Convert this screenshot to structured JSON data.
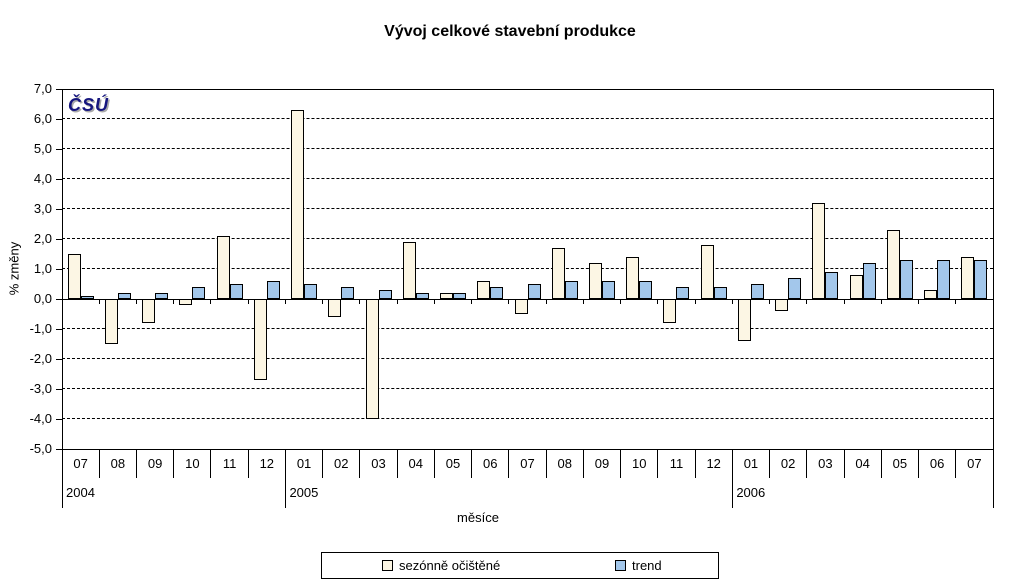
{
  "title": "Vývoj celkové stavební produkce",
  "logo": {
    "text": "ČSÚ",
    "color": "#15157e"
  },
  "axes": {
    "y_label": "% změny",
    "x_label": "měsíce",
    "y_ticks": [
      {
        "v": 7,
        "label": "7,0"
      },
      {
        "v": 6,
        "label": "6,0"
      },
      {
        "v": 5,
        "label": "5,0"
      },
      {
        "v": 4,
        "label": "4,0"
      },
      {
        "v": 3,
        "label": "3,0"
      },
      {
        "v": 2,
        "label": "2,0"
      },
      {
        "v": 1,
        "label": "1,0"
      },
      {
        "v": 0,
        "label": "0,0"
      },
      {
        "v": -1,
        "label": "-1,0"
      },
      {
        "v": -2,
        "label": "-2,0"
      },
      {
        "v": -3,
        "label": "-3,0"
      },
      {
        "v": -4,
        "label": "-4,0"
      },
      {
        "v": -5,
        "label": "-5,0"
      }
    ]
  },
  "chart_data": {
    "type": "bar",
    "title": "Vývoj celkové stavební produkce",
    "xlabel": "měsíce",
    "ylabel": "% změny",
    "ylim": [
      -5,
      7
    ],
    "grid": true,
    "legend_position": "bottom",
    "x_groups": [
      {
        "year": "2004",
        "months": [
          "07",
          "08",
          "09",
          "10",
          "11",
          "12"
        ]
      },
      {
        "year": "2005",
        "months": [
          "01",
          "02",
          "03",
          "04",
          "05",
          "06",
          "07",
          "08",
          "09",
          "10",
          "11",
          "12"
        ]
      },
      {
        "year": "2006",
        "months": [
          "01",
          "02",
          "03",
          "04",
          "05",
          "06",
          "07"
        ]
      }
    ],
    "categories": [
      "2004-07",
      "2004-08",
      "2004-09",
      "2004-10",
      "2004-11",
      "2004-12",
      "2005-01",
      "2005-02",
      "2005-03",
      "2005-04",
      "2005-05",
      "2005-06",
      "2005-07",
      "2005-08",
      "2005-09",
      "2005-10",
      "2005-11",
      "2005-12",
      "2006-01",
      "2006-02",
      "2006-03",
      "2006-04",
      "2006-05",
      "2006-06",
      "2006-07"
    ],
    "series": [
      {
        "name": "sezónně očištěné",
        "color": "#fcf6e4",
        "values": [
          1.5,
          -1.5,
          -0.8,
          -0.2,
          2.1,
          -2.7,
          6.3,
          -0.6,
          -4.0,
          1.9,
          0.2,
          0.6,
          -0.5,
          1.7,
          1.2,
          1.4,
          -0.8,
          1.8,
          -1.4,
          -0.4,
          3.2,
          0.8,
          2.3,
          0.3,
          1.4
        ]
      },
      {
        "name": "trend",
        "color": "#a3c7eb",
        "values": [
          0.1,
          0.2,
          0.2,
          0.4,
          0.5,
          0.6,
          0.5,
          0.4,
          0.3,
          0.2,
          0.2,
          0.4,
          0.5,
          0.6,
          0.6,
          0.6,
          0.4,
          0.4,
          0.5,
          0.7,
          0.9,
          1.2,
          1.3,
          1.3,
          1.3
        ]
      }
    ]
  }
}
